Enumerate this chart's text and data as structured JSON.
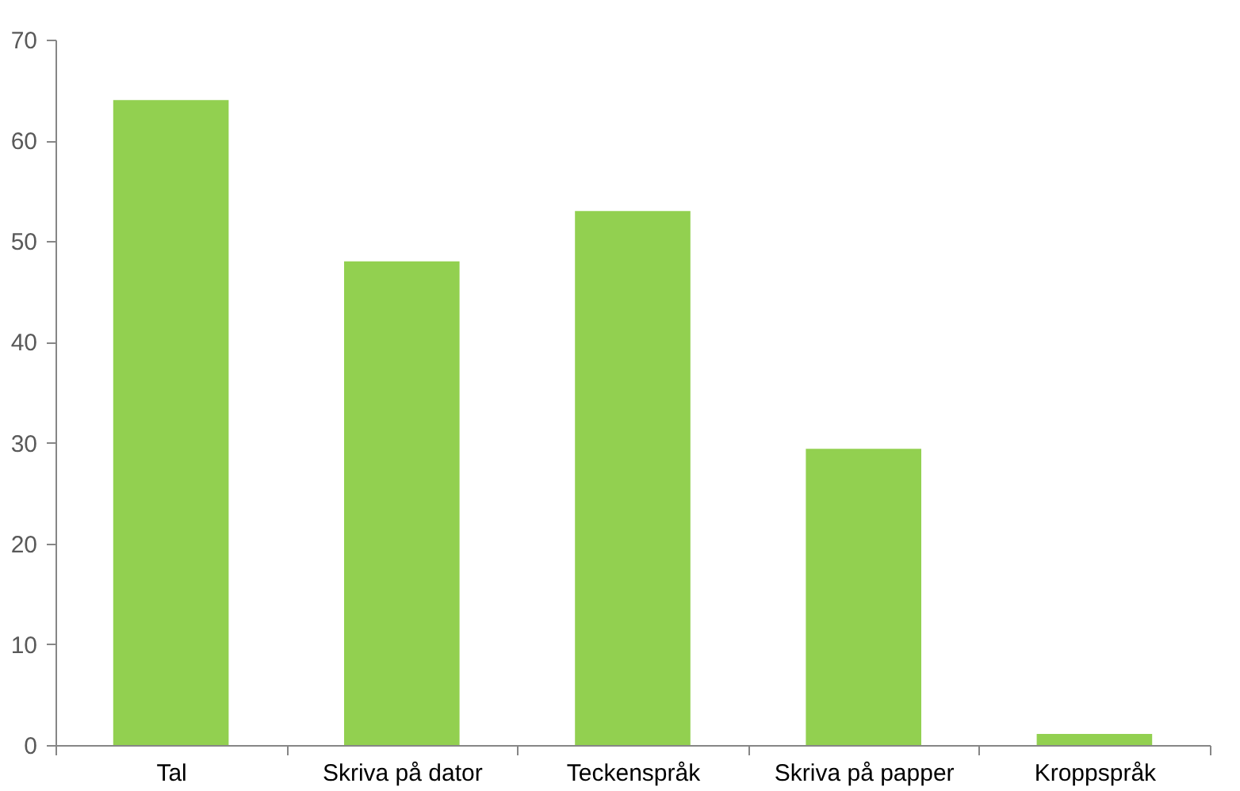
{
  "chart_data": {
    "type": "bar",
    "categories": [
      "Tal",
      "Skriva på dator",
      "Teckenspråk",
      "Skriva på papper",
      "Kroppspråk"
    ],
    "values": [
      64,
      48,
      53,
      29.4,
      1.1
    ],
    "color": "#92d050",
    "ylim": [
      0,
      70
    ],
    "yticks": [
      0,
      10,
      20,
      30,
      40,
      50,
      60,
      70
    ]
  }
}
